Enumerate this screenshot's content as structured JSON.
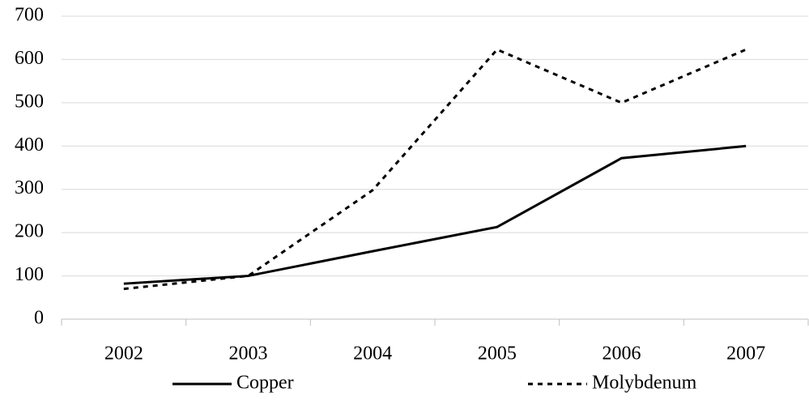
{
  "chart_data": {
    "type": "line",
    "categories": [
      "2002",
      "2003",
      "2004",
      "2005",
      "2006",
      "2007"
    ],
    "series": [
      {
        "name": "Copper",
        "color": "#000000",
        "dash": "solid",
        "values": [
          82,
          100,
          157,
          213,
          372,
          400
        ]
      },
      {
        "name": "Molybdenum",
        "color": "#000000",
        "dash": "dashed",
        "values": [
          70,
          100,
          298,
          623,
          500,
          623
        ]
      }
    ],
    "ylim": [
      0,
      700
    ],
    "yticks": [
      0,
      100,
      200,
      300,
      400,
      500,
      600,
      700
    ],
    "grid": true,
    "legend": "bottom"
  }
}
